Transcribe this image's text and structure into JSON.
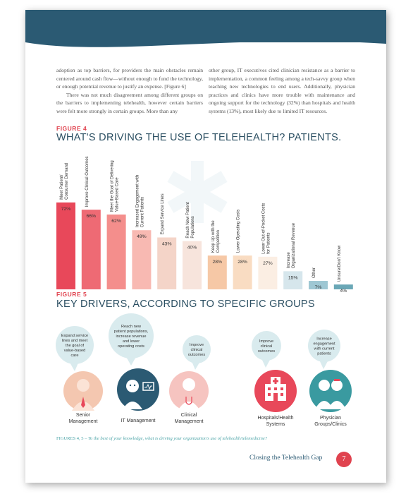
{
  "body_text": {
    "col1_p1": "adoption as top barriers, for providers the main obstacles remain centered around cash flow—without enough to fund the technology, or enough potential revenue to justify an expense. [Figure 6]",
    "col1_p2": "There was not much disagreement among different groups on the barriers to implementing telehealth, however certain barriers were felt more strongly in certain groups. More than any",
    "col2_p1": "other group, IT executives cited clinician resistance as a barrier to implementation, a common feeling among a tech-savvy group when teaching new technologies to end users. Additionally, physician practices and clinics have more trouble with maintenance and ongoing support for the technology (32%) than hospitals and health systems (13%), most likely due to limited IT resources."
  },
  "figure4": {
    "label": "FIGURE 4",
    "title": "WHAT'S DRIVING THE USE OF TELEHEALTH? PATIENTS."
  },
  "chart_data": {
    "type": "bar",
    "categories": [
      "Meet Patient/ Consumer Demand",
      "Improve Clinical Outcomes",
      "Meet the Goal of Delivering Value-Based Care",
      "Increased Engagement with Current Patients",
      "Expand Service Lines",
      "Reach New Patient Populations",
      "Keep Up with the Competition",
      "Lower Operating Costs",
      "Lower Out-of-Pocket Costs for Patients",
      "Increase Organizational Revenue",
      "Other",
      "Unsure/Don't Know"
    ],
    "values": [
      72,
      66,
      62,
      49,
      43,
      40,
      28,
      28,
      27,
      15,
      7,
      4
    ],
    "value_labels": [
      "72%",
      "66%",
      "62%",
      "49%",
      "43%",
      "40%",
      "28%",
      "28%",
      "27%",
      "15%",
      "7%",
      "4%"
    ],
    "colors": [
      "#e8485a",
      "#ee6a74",
      "#f48e8c",
      "#f8b9b2",
      "#f4d4c8",
      "#f7e4dc",
      "#f6c8a6",
      "#f9dcc2",
      "#fbeee3",
      "#d6e6ec",
      "#9ec7d3",
      "#6aa7b6"
    ],
    "ylim": [
      0,
      100
    ]
  },
  "figure5": {
    "label": "FIGURE 5",
    "title": "KEY DRIVERS, ACCORDING TO SPECIFIC GROUPS",
    "groups": [
      {
        "label_lines": [
          "Senior",
          "Management"
        ],
        "bubble_lines": [
          "Expand service",
          "lines and meet",
          "the goal of",
          "value-based",
          "care"
        ],
        "color": "#f4c7b0",
        "icon": "senior-manager-icon"
      },
      {
        "label_lines": [
          "IT Management"
        ],
        "bubble_lines": [
          "Reach new",
          "patient populations,",
          "increase revenue",
          "and lower",
          "operating costs"
        ],
        "color": "#2b5a73",
        "icon": "it-manager-icon"
      },
      {
        "label_lines": [
          "Clinical",
          "Management"
        ],
        "bubble_lines": [
          "Improve",
          "clinical",
          "outcomes"
        ],
        "color": "#f6c4c0",
        "icon": "clinician-icon"
      },
      {
        "label_lines": [
          "Hospitals/Health",
          "Systems"
        ],
        "bubble_lines": [
          "Improve",
          "clinical",
          "outcomes"
        ],
        "color": "#e8485a",
        "icon": "hospital-icon"
      },
      {
        "label_lines": [
          "Physician",
          "Groups/Clinics"
        ],
        "bubble_lines": [
          "Increase",
          "engagement",
          "with current",
          "patients"
        ],
        "color": "#3a9aa0",
        "icon": "physicians-icon"
      }
    ]
  },
  "caption": {
    "prefix": "FIGURES 4, 5 –",
    "text": "To the best of your knowledge, what is driving your organization's use of telehealth/telemedicine?"
  },
  "footer": {
    "title": "Closing the Telehealth Gap",
    "page_number": "7"
  },
  "colors": {
    "banner": "#2b5a73",
    "accent_red": "#e0434f",
    "teal": "#4aa3a6"
  }
}
